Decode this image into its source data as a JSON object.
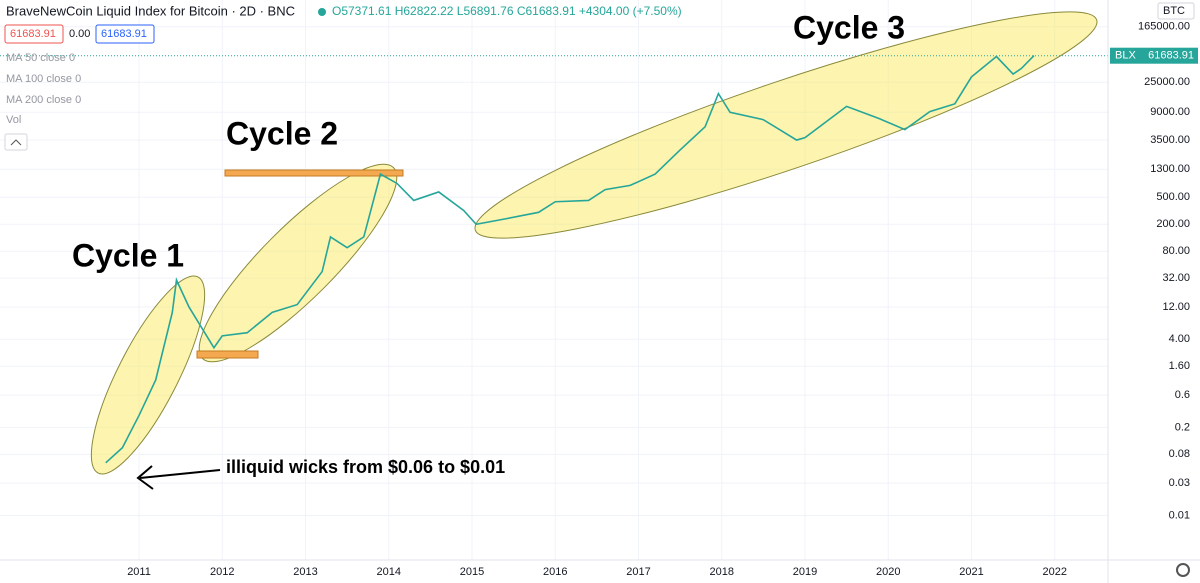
{
  "header": {
    "symbol": "BraveNewCoin Liquid Index for Bitcoin · 2D · BNC",
    "ohlc": "O57371.61 H62822.22 L56891.76 C61683.91 +4304.00 (+7.50%)",
    "sell": "61683.91",
    "spread": "0.00",
    "buy": "61683.91",
    "indicators": [
      "MA 50 close 0",
      "MA 100 close 0",
      "MA 200 close 0",
      "Vol"
    ],
    "currency": "BTC"
  },
  "chart_data": {
    "type": "line",
    "log_scale": true,
    "ticker": "BLX",
    "last_price": 61683.91,
    "annotations": [
      "Cycle 1",
      "Cycle 2",
      "Cycle 3",
      "illiquid wicks from $0.06 to $0.01"
    ],
    "x": [
      2010.6,
      2010.8,
      2011.0,
      2011.2,
      2011.4,
      2011.45,
      2011.6,
      2011.9,
      2012.0,
      2012.3,
      2012.6,
      2012.9,
      2013.2,
      2013.3,
      2013.5,
      2013.7,
      2013.9,
      2014.1,
      2014.3,
      2014.6,
      2014.9,
      2015.05,
      2015.4,
      2015.8,
      2016.0,
      2016.4,
      2016.6,
      2016.9,
      2017.2,
      2017.5,
      2017.8,
      2017.96,
      2018.1,
      2018.5,
      2018.9,
      2019.0,
      2019.5,
      2019.9,
      2020.2,
      2020.5,
      2020.8,
      2021.0,
      2021.3,
      2021.5,
      2021.6,
      2021.75
    ],
    "series": [
      {
        "color": "#26a69a",
        "values": [
          0.06,
          0.1,
          0.3,
          1,
          10,
          30,
          12,
          3,
          4.5,
          5,
          10,
          13,
          40,
          130,
          90,
          130,
          1100,
          800,
          450,
          600,
          320,
          200,
          240,
          300,
          430,
          450,
          650,
          750,
          1100,
          2500,
          5500,
          17000,
          9000,
          7000,
          3500,
          3800,
          11000,
          7200,
          5000,
          9200,
          12000,
          30000,
          60000,
          33000,
          40000,
          61683.91
        ]
      }
    ],
    "xlim": [
      2009.33,
      2022.64
    ],
    "xticks": [
      2011,
      2012,
      2013,
      2014,
      2015,
      2016,
      2017,
      2018,
      2019,
      2020,
      2021,
      2022
    ],
    "ylim": [
      0.0022,
      410000
    ],
    "yticks": [
      {
        "value": 165000,
        "label": "165000.00"
      },
      {
        "value": 25000,
        "label": "25000.00"
      },
      {
        "value": 9000,
        "label": "9000.00"
      },
      {
        "value": 3500,
        "label": "3500.00"
      },
      {
        "value": 1300,
        "label": "1300.00"
      },
      {
        "value": 500,
        "label": "500.00"
      },
      {
        "value": 200,
        "label": "200.00"
      },
      {
        "value": 80,
        "label": "80.00"
      },
      {
        "value": 32,
        "label": "32.00"
      },
      {
        "value": 12,
        "label": "12.00"
      },
      {
        "value": 4,
        "label": "4.00"
      },
      {
        "value": 1.6,
        "label": "1.60"
      },
      0.6,
      0.2,
      0.08,
      0.03,
      0.01
    ]
  }
}
